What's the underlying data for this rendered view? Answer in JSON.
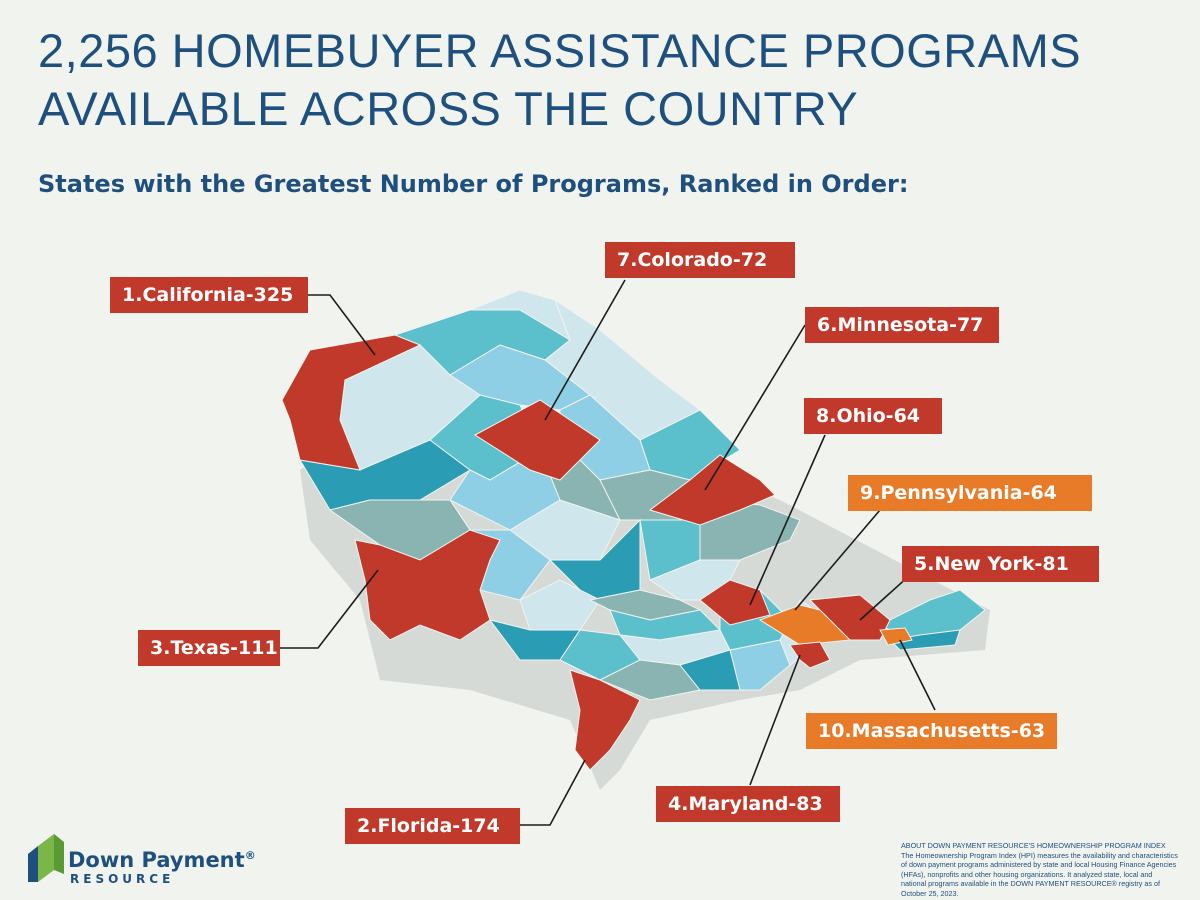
{
  "title": {
    "line1": "2,256 HOMEBUYER ASSISTANCE PROGRAMS",
    "line2": "AVAILABLE ACROSS THE COUNTRY"
  },
  "subtitle": "States with the Greatest Number of Programs, Ranked in Order:",
  "rankings": [
    {
      "rank": 1,
      "label": "1.California-325",
      "state": "California",
      "programs": 325,
      "color": "#c1392b"
    },
    {
      "rank": 2,
      "label": "2.Florida-174",
      "state": "Florida",
      "programs": 174,
      "color": "#c1392b"
    },
    {
      "rank": 3,
      "label": "3.Texas-111",
      "state": "Texas",
      "programs": 111,
      "color": "#c1392b"
    },
    {
      "rank": 4,
      "label": "4.Maryland-83",
      "state": "Maryland",
      "programs": 83,
      "color": "#c1392b"
    },
    {
      "rank": 5,
      "label": "5.New York-81",
      "state": "New York",
      "programs": 81,
      "color": "#c1392b"
    },
    {
      "rank": 6,
      "label": "6.Minnesota-77",
      "state": "Minnesota",
      "programs": 77,
      "color": "#c1392b"
    },
    {
      "rank": 7,
      "label": "7.Colorado-72",
      "state": "Colorado",
      "programs": 72,
      "color": "#c1392b"
    },
    {
      "rank": 8,
      "label": "8.Ohio-64",
      "state": "Ohio",
      "programs": 64,
      "color": "#c1392b"
    },
    {
      "rank": 9,
      "label": "9.Pennsylvania-64",
      "state": "Pennsylvania",
      "programs": 64,
      "color": "#e87b28"
    },
    {
      "rank": 10,
      "label": "10.Massachusetts-63",
      "state": "Massachusetts",
      "programs": 63,
      "color": "#e87b28"
    }
  ],
  "logo": {
    "name": "Down Payment",
    "registered": "®",
    "sub": "RESOURCE",
    "icon": "house-logo-icon"
  },
  "about_text": "ABOUT DOWN PAYMENT RESOURCE'S HOMEOWNERSHIP PROGRAM INDEX The Homeownership Program Index (HPI) measures the availability and characteristics of down payment programs administered by state and local Housing Finance Agencies (HFAs), nonprofits and other housing organizations. It analyzed state, local and national programs available in the DOWN PAYMENT RESOURCE® registry as of October 25, 2023.",
  "colors": {
    "title": "#1f4f7c",
    "highlight_red": "#c1392b",
    "highlight_orange": "#e87b28",
    "background": "#f1f3ef"
  }
}
